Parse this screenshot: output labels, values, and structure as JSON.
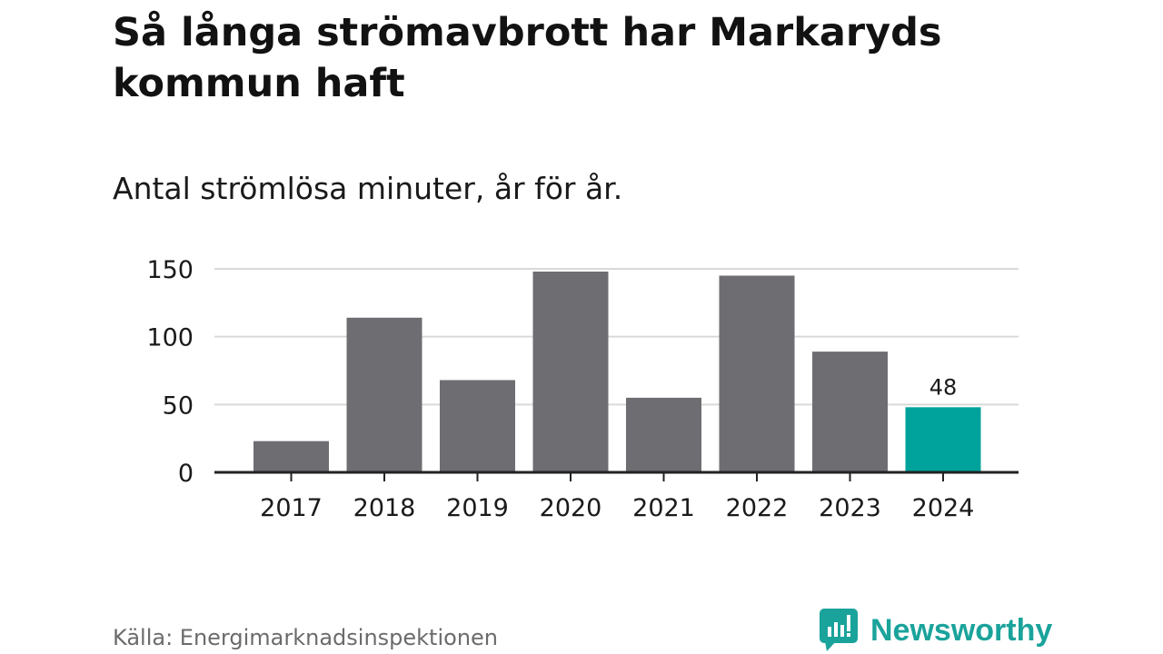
{
  "title": "Så långa strömavbrott har Markaryds kommun haft",
  "subtitle": "Antal strömlösa minuter, år för år.",
  "source": "Källa: Energimarknadsinspektionen",
  "brand": "Newsworthy",
  "colors": {
    "bar": "#6e6d72",
    "highlight": "#00a39b",
    "grid": "#d9d9d9",
    "axis": "#222222",
    "brand": "#1aa39b"
  },
  "chart_data": {
    "type": "bar",
    "categories": [
      "2017",
      "2018",
      "2019",
      "2020",
      "2021",
      "2022",
      "2023",
      "2024"
    ],
    "values": [
      23,
      114,
      68,
      148,
      55,
      145,
      89,
      48
    ],
    "highlight_index": 7,
    "data_labels": [
      null,
      null,
      null,
      null,
      null,
      null,
      null,
      "48"
    ],
    "ylim": [
      0,
      150
    ],
    "yticks": [
      0,
      50,
      100,
      150
    ],
    "xlabel": "",
    "ylabel": "",
    "grid": true,
    "legend": "none"
  }
}
